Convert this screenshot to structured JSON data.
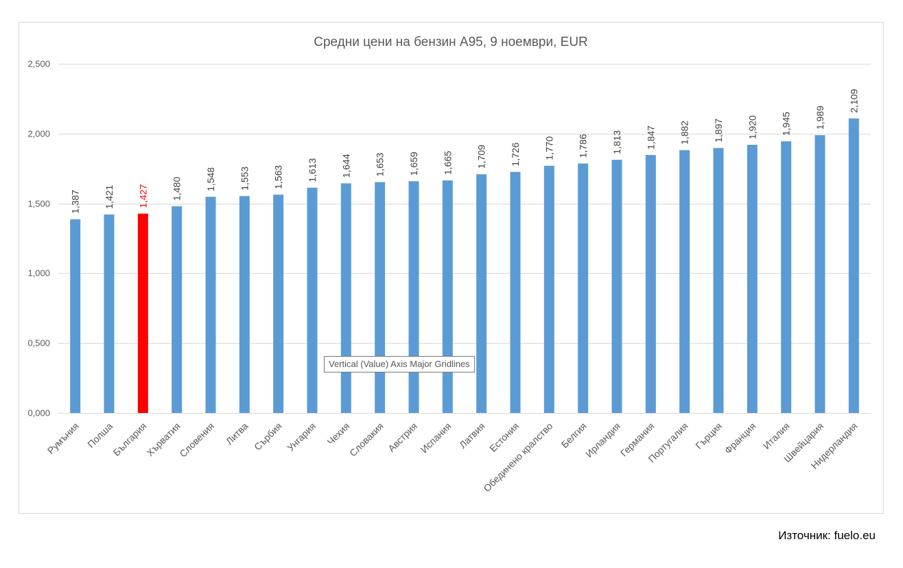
{
  "chart_data": {
    "type": "bar",
    "title": "Средни цени на бензин А95, 9 ноември, EUR",
    "categories": [
      "Румъния",
      "Полша",
      "България",
      "Хърватия",
      "Словения",
      "Литва",
      "Сърбия",
      "Унгария",
      "Чехия",
      "Словакия",
      "Австрия",
      "Испания",
      "Латвия",
      "Естония",
      "Обединено кралство",
      "Белгия",
      "Ирландия",
      "Германия",
      "Португалия",
      "Гърция",
      "Франция",
      "Италия",
      "Швейцария",
      "Нидерландия"
    ],
    "values": [
      1.387,
      1.421,
      1.427,
      1.48,
      1.548,
      1.553,
      1.563,
      1.613,
      1.644,
      1.653,
      1.659,
      1.665,
      1.709,
      1.726,
      1.77,
      1.786,
      1.813,
      1.847,
      1.882,
      1.897,
      1.92,
      1.945,
      1.989,
      2.109
    ],
    "value_labels": [
      "1,387",
      "1,421",
      "1,427",
      "1,480",
      "1,548",
      "1,553",
      "1,563",
      "1,613",
      "1,644",
      "1,653",
      "1,659",
      "1,665",
      "1,709",
      "1,726",
      "1,770",
      "1,786",
      "1,813",
      "1,847",
      "1,882",
      "1,897",
      "1,920",
      "1,945",
      "1,989",
      "2,109"
    ],
    "y_ticks": [
      "0,000",
      "0,500",
      "1,000",
      "1,500",
      "2,000",
      "2,500"
    ],
    "ylim": [
      0,
      2.5
    ],
    "grid": true,
    "legend": "none",
    "bar_color": "#5b9bd5",
    "highlight_category": "България",
    "highlight_color": "#ff0000"
  },
  "tooltip": "Vertical (Value) Axis Major Gridlines",
  "source": "Източник: fuelo.eu"
}
